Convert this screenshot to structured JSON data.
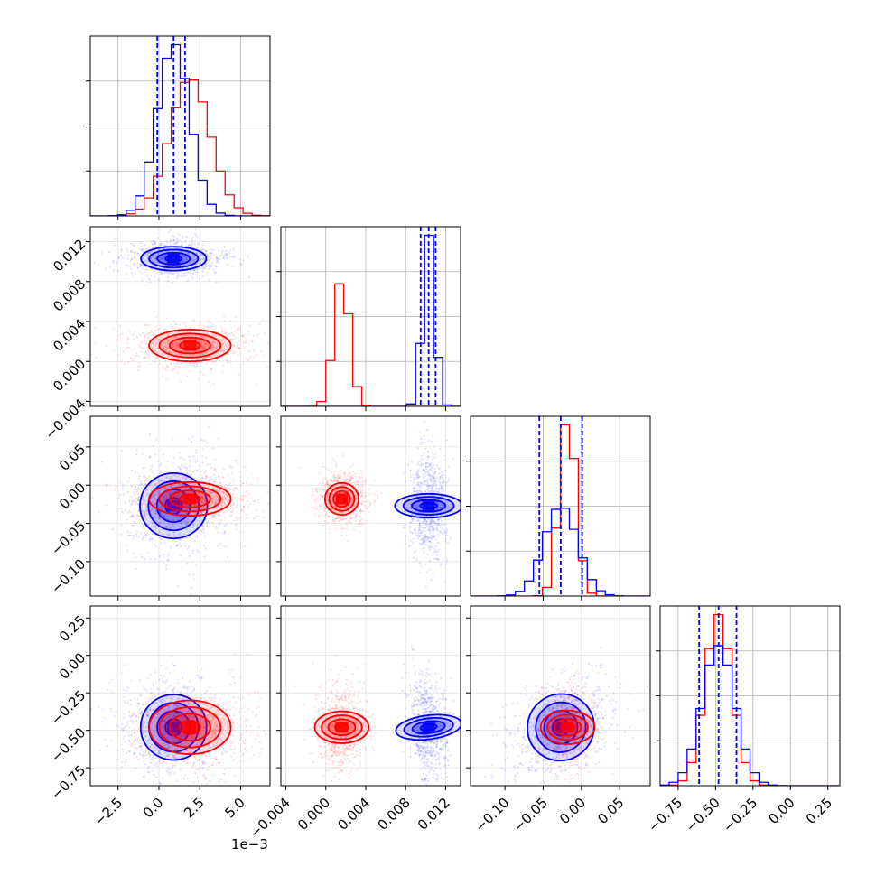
{
  "chart_data": {
    "type": "corner",
    "offset_text": "1e−3",
    "colors": {
      "series_a": "#0000ff",
      "series_b": "#ff0000"
    },
    "grid": true,
    "parameters": [
      {
        "range": [
          -4.2,
          6.8
        ],
        "ticks": [
          -2.5,
          0.0,
          2.5,
          5.0
        ],
        "tick_labels": [
          "−2.5",
          "0.0",
          "2.5",
          "5.0"
        ]
      },
      {
        "range": [
          -0.0045,
          0.0135
        ],
        "ticks": [
          -0.004,
          0.0,
          0.004,
          0.008,
          0.012
        ],
        "tick_labels": [
          "−0.004",
          "0.000",
          "0.004",
          "0.008",
          "0.012"
        ]
      },
      {
        "range": [
          -0.145,
          0.09
        ],
        "ticks": [
          -0.1,
          -0.05,
          0.0,
          0.05
        ],
        "tick_labels": [
          "−0.10",
          "−0.05",
          "0.00",
          "0.05"
        ]
      },
      {
        "range": [
          -0.87,
          0.33
        ],
        "ticks": [
          -0.75,
          -0.5,
          -0.25,
          0.0,
          0.25
        ],
        "tick_labels": [
          "−0.75",
          "−0.50",
          "−0.25",
          "0.00",
          "0.25"
        ]
      }
    ],
    "series": [
      {
        "color": "#0000ff",
        "mean": [
          0.9,
          0.0103,
          -0.027,
          -0.48
        ],
        "std": [
          1.0,
          0.0006,
          0.022,
          0.11
        ],
        "quantiles": [
          [
            -0.1,
            0.9,
            1.6
          ],
          [
            0.0095,
            0.0103,
            0.011
          ],
          [
            -0.055,
            -0.027,
            0.001
          ],
          [
            -0.61,
            -0.48,
            -0.36
          ]
        ]
      },
      {
        "color": "#ff0000",
        "mean": [
          1.9,
          0.0016,
          -0.018,
          -0.48
        ],
        "std": [
          1.25,
          0.0008,
          0.011,
          0.09
        ]
      }
    ]
  }
}
